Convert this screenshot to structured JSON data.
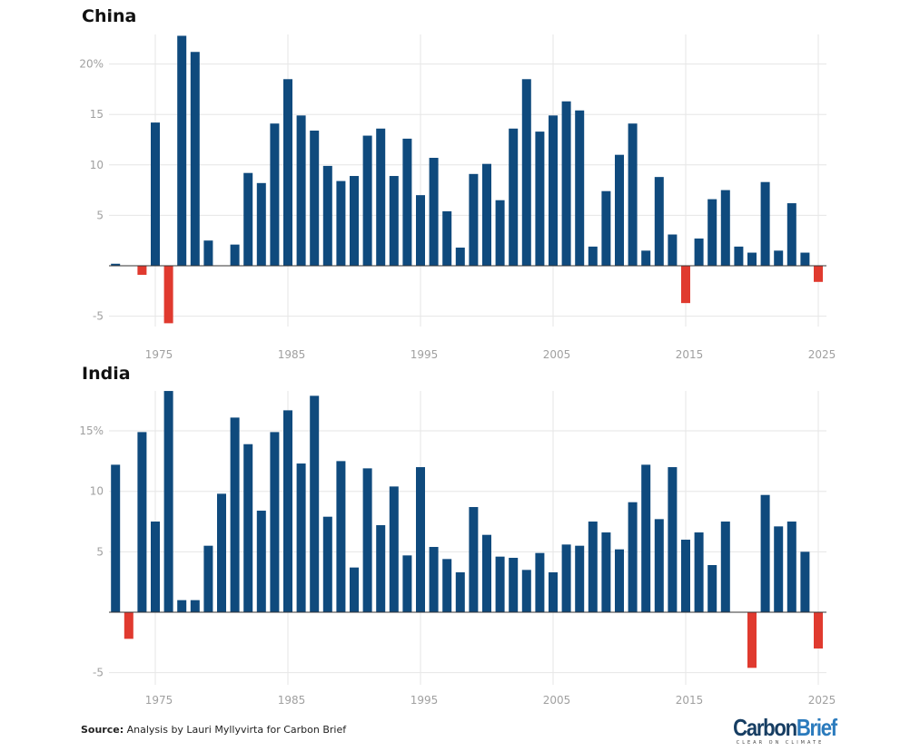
{
  "chart_data": [
    {
      "type": "bar",
      "title": "China",
      "x": [
        1972,
        1973,
        1974,
        1975,
        1976,
        1977,
        1978,
        1979,
        1980,
        1981,
        1982,
        1983,
        1984,
        1985,
        1986,
        1987,
        1988,
        1989,
        1990,
        1991,
        1992,
        1993,
        1994,
        1995,
        1996,
        1997,
        1998,
        1999,
        2000,
        2001,
        2002,
        2003,
        2004,
        2005,
        2006,
        2007,
        2008,
        2009,
        2010,
        2011,
        2012,
        2013,
        2014,
        2015,
        2016,
        2017,
        2018,
        2019,
        2020,
        2021,
        2022,
        2023,
        2024,
        2025
      ],
      "values": [
        0.2,
        0,
        -0.9,
        14.2,
        -5.7,
        22.8,
        21.2,
        2.5,
        0,
        2.1,
        9.2,
        8.2,
        14.1,
        18.5,
        14.9,
        13.4,
        9.9,
        8.4,
        8.9,
        12.9,
        13.6,
        8.9,
        12.6,
        7.0,
        10.7,
        5.4,
        1.8,
        9.1,
        10.1,
        6.5,
        13.6,
        18.5,
        13.3,
        14.9,
        16.3,
        15.4,
        1.9,
        7.4,
        11.0,
        14.1,
        1.5,
        8.8,
        3.1,
        -3.7,
        2.7,
        6.6,
        7.5,
        1.9,
        1.3,
        8.3,
        1.5,
        6.2,
        1.3,
        -1.6
      ],
      "xticks": [
        "1975",
        "1985",
        "1995",
        "2005",
        "2015",
        "2025"
      ],
      "yticks": [
        "-5",
        "",
        "5",
        "10",
        "15",
        "20%"
      ],
      "ytick_values": [
        -5,
        0,
        5,
        10,
        15,
        20
      ],
      "ylim": [
        -5.7,
        22.8
      ],
      "grid": true,
      "colors": {
        "positive": "#0f4a7d",
        "negative": "#e03a2f"
      }
    },
    {
      "type": "bar",
      "title": "India",
      "x": [
        1972,
        1973,
        1974,
        1975,
        1976,
        1977,
        1978,
        1979,
        1980,
        1981,
        1982,
        1983,
        1984,
        1985,
        1986,
        1987,
        1988,
        1989,
        1990,
        1991,
        1992,
        1993,
        1994,
        1995,
        1996,
        1997,
        1998,
        1999,
        2000,
        2001,
        2002,
        2003,
        2004,
        2005,
        2006,
        2007,
        2008,
        2009,
        2010,
        2011,
        2012,
        2013,
        2014,
        2015,
        2016,
        2017,
        2018,
        2019,
        2020,
        2021,
        2022,
        2023,
        2024,
        2025
      ],
      "values": [
        12.2,
        -2.2,
        14.9,
        7.5,
        18.3,
        1.0,
        1.0,
        5.5,
        9.8,
        16.1,
        13.9,
        8.4,
        14.9,
        16.7,
        12.3,
        17.9,
        7.9,
        12.5,
        3.7,
        11.9,
        7.2,
        10.4,
        4.7,
        12.0,
        5.4,
        4.4,
        3.3,
        8.7,
        6.4,
        4.6,
        4.5,
        3.5,
        4.9,
        3.3,
        5.6,
        5.5,
        7.5,
        6.6,
        5.2,
        9.1,
        12.2,
        7.7,
        12.0,
        6.0,
        6.6,
        3.9,
        7.5,
        0,
        -4.6,
        9.7,
        7.1,
        7.5,
        5.0,
        -3.0
      ],
      "xticks": [
        "1975",
        "1985",
        "1995",
        "2005",
        "2015",
        "2025"
      ],
      "yticks": [
        "-5",
        "",
        "5",
        "10",
        "15%"
      ],
      "ytick_values": [
        -5,
        0,
        5,
        10,
        15
      ],
      "ylim": [
        -5.2,
        18.3
      ],
      "grid": true,
      "colors": {
        "positive": "#0f4a7d",
        "negative": "#e03a2f"
      }
    }
  ],
  "footer": {
    "source_label": "Source:",
    "source_text": " Analysis by Lauri Myllyvirta for Carbon Brief",
    "logo": {
      "word1": "Carbon",
      "word2": "Brief",
      "tagline": "CLEAR ON CLIMATE"
    }
  }
}
